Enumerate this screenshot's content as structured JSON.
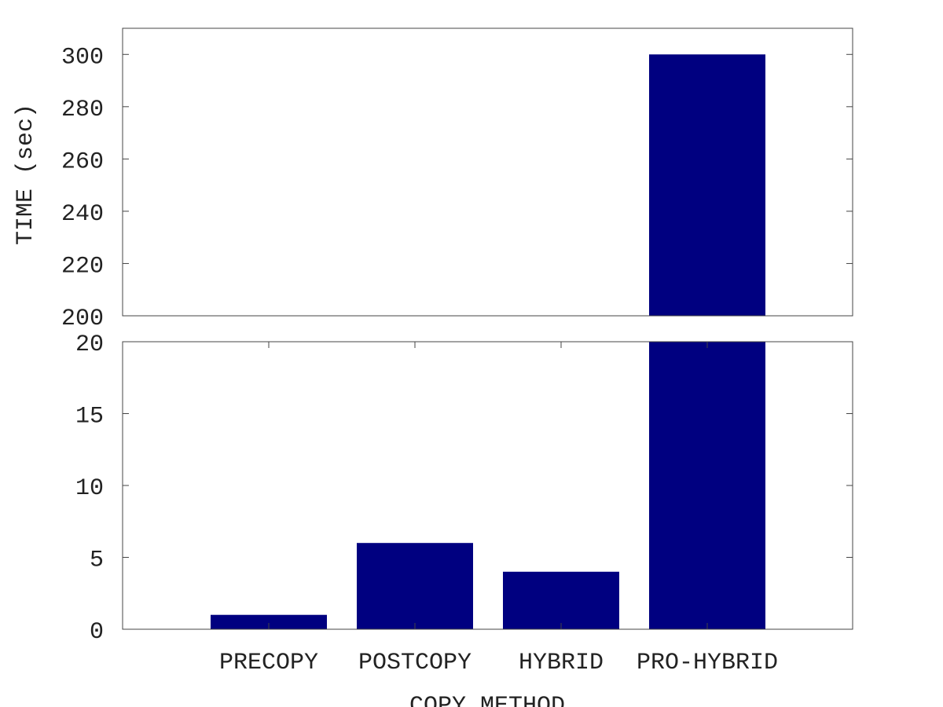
{
  "chart_data": {
    "type": "bar",
    "broken_axis": true,
    "categories": [
      "PRECOPY",
      "POSTCOPY",
      "HYBRID",
      "PRO-HYBRID"
    ],
    "values": [
      1,
      6,
      4,
      300
    ],
    "xlabel": "COPY METHOD",
    "ylabel": "TIME (sec)",
    "bar_color": "#000080",
    "grid": false,
    "upper_panel": {
      "ylim": [
        200,
        310
      ],
      "ticks": [
        200,
        220,
        240,
        260,
        280,
        300
      ]
    },
    "lower_panel": {
      "ylim": [
        0,
        20
      ],
      "ticks": [
        0,
        5,
        10,
        15,
        20
      ]
    }
  }
}
